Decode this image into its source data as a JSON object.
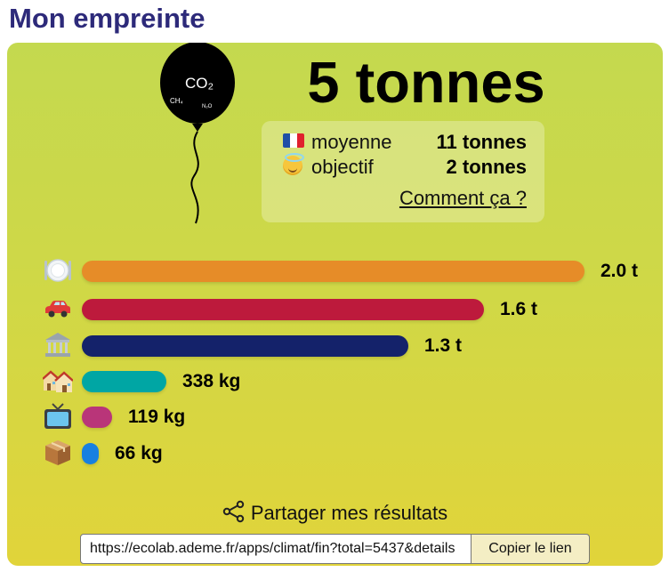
{
  "page": {
    "title": "Mon empreinte"
  },
  "balloon": {
    "co2_label": "CO₂",
    "ch4_label": "CH₄",
    "n2o_label": "N₂O"
  },
  "summary": {
    "total": "5 tonnes",
    "comparisons": [
      {
        "icon": "french-flag-icon",
        "label": "moyenne",
        "value": "11 tonnes"
      },
      {
        "icon": "smiling-halo-face-icon",
        "label": "objectif",
        "value": "2 tonnes"
      }
    ],
    "how_link": "Comment ça ?"
  },
  "categories": [
    {
      "icon": "plate-cutlery-icon",
      "label": "2.0 t",
      "value_kg": 2000,
      "color": "#e68c28"
    },
    {
      "icon": "car-icon",
      "label": "1.6 t",
      "value_kg": 1600,
      "color": "#bd1a3c"
    },
    {
      "icon": "public-building-icon",
      "label": "1.3 t",
      "value_kg": 1300,
      "color": "#14226a"
    },
    {
      "icon": "houses-icon",
      "label": "338 kg",
      "value_kg": 338,
      "color": "#00a6a4"
    },
    {
      "icon": "television-icon",
      "label": "119 kg",
      "value_kg": 119,
      "color": "#b93579"
    },
    {
      "icon": "package-icon",
      "label": "66 kg",
      "value_kg": 66,
      "color": "#1880e0"
    }
  ],
  "share": {
    "label": "Partager mes résultats",
    "url": "https://ecolab.ademe.fr/apps/climat/fin?total=5437&details",
    "copy_button": "Copier le lien"
  }
}
